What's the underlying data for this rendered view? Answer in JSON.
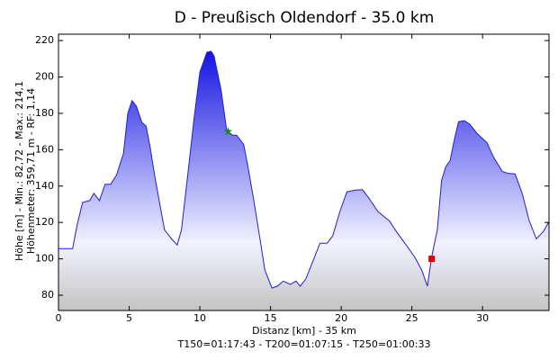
{
  "chart_data": {
    "type": "area",
    "title": "D - Preußisch Oldendorf - 35.0 km",
    "ylabel": [
      "Höhe [m] - Min.: 82,72 - Max.: 214,1",
      "Höhenmeter: 359,71 m - RF: 1,14"
    ],
    "xlabel": "Distanz [km] - 35 km",
    "footer": "T150=01:17:43 - T200=01:07:15 - T250=01:00:33",
    "xlim": [
      0,
      34.7
    ],
    "ylim": [
      71.6,
      223.5
    ],
    "xticks": [
      0,
      5,
      10,
      15,
      20,
      25,
      30
    ],
    "yticks": [
      80,
      100,
      120,
      140,
      160,
      180,
      200,
      220
    ],
    "series": [
      {
        "color": "#2020d0",
        "x": [
          0,
          1,
          1.3,
          1.7,
          2.2,
          2.5,
          2.9,
          3.3,
          3.7,
          4.1,
          4.6,
          4.9,
          5.2,
          5.5,
          5.9,
          6.2,
          6.5,
          6.8,
          7.1,
          7.5,
          8.0,
          8.4,
          8.7,
          9.1,
          9.6,
          10.0,
          10.5,
          10.8,
          11.0,
          11.5,
          11.9,
          12.3,
          12.6,
          13.1,
          13.4,
          13.8,
          14.2,
          14.6,
          15.1,
          15.5,
          15.9,
          16.4,
          16.8,
          17.1,
          17.5,
          18.0,
          18.5,
          19.0,
          19.4,
          19.9,
          20.4,
          21.0,
          21.5,
          22.0,
          22.6,
          23.4,
          23.9,
          24.5,
          25.2,
          25.7,
          26.1,
          26.4,
          26.8,
          27.1,
          27.4,
          27.7,
          28.0,
          28.3,
          28.7,
          29.1,
          29.6,
          30.3,
          30.8,
          31.4,
          31.8,
          32.3,
          32.8,
          33.3,
          33.8,
          34.3,
          34.7
        ],
        "values": [
          105.6,
          105.6,
          118,
          131,
          132,
          136,
          132,
          141,
          141,
          146,
          158,
          180,
          187,
          184,
          175,
          173,
          160.6,
          146,
          133,
          116,
          111,
          107.6,
          116,
          143,
          178,
          202.7,
          213.6,
          214.1,
          211.6,
          193,
          170.5,
          168,
          168,
          163,
          150.7,
          133,
          113.6,
          93.8,
          83.9,
          85,
          87.8,
          86,
          87.8,
          85,
          89,
          98.7,
          108.6,
          108.6,
          112.6,
          126,
          136.8,
          137.8,
          138,
          133,
          126,
          121,
          115,
          108.6,
          101,
          93.8,
          85,
          101,
          116,
          143,
          150.7,
          154,
          165.5,
          175.4,
          176,
          174,
          169,
          164,
          155.6,
          148,
          147,
          146.7,
          136,
          121,
          111,
          115,
          120.5
        ]
      }
    ],
    "markers": [
      {
        "x": 12,
        "y": 170,
        "color": "#1a8a1a",
        "shape": "star"
      },
      {
        "x": 26.4,
        "y": 100,
        "color": "#e00000",
        "shape": "square"
      }
    ]
  }
}
